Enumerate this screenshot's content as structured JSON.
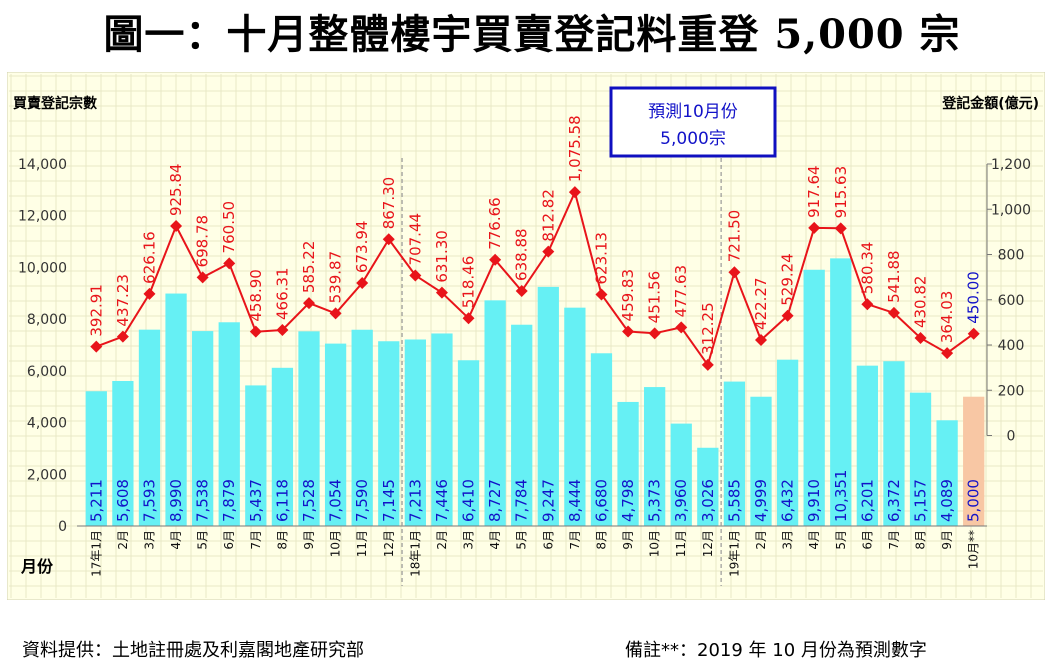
{
  "page_title": "圖一：十月整體樓宇買賣登記料重登 5,000 宗",
  "footer": {
    "source": "資料提供：土地註冊處及利嘉閣地產研究部",
    "note": "備註**：2019 年 10 月份為預測數字"
  },
  "callout": {
    "line1": "預測10月份",
    "line2": "5,000宗"
  },
  "chart_data": {
    "type": "bar+line",
    "title": "圖一：十月整體樓宇買賣登記料重登 5,000 宗",
    "left_axis_label": "買賣登記宗數",
    "right_axis_label": "登記金額(億元)",
    "x_axis_label": "月份",
    "left_ylim": [
      0,
      14000
    ],
    "left_ticks": [
      "0",
      "2,000",
      "4,000",
      "6,000",
      "8,000",
      "10,000",
      "12,000",
      "14,000"
    ],
    "left_tick_values": [
      0,
      2000,
      4000,
      6000,
      8000,
      10000,
      12000,
      14000
    ],
    "right_ylim": [
      -400,
      1200
    ],
    "right_ticks": [
      "0",
      "200",
      "400",
      "600",
      "800",
      "1,000",
      "1,200"
    ],
    "right_tick_values": [
      0,
      200,
      400,
      600,
      800,
      1000,
      1200
    ],
    "categories": [
      "17年1月",
      "2月",
      "3月",
      "4月",
      "5月",
      "6月",
      "7月",
      "8月",
      "9月",
      "10月",
      "11月",
      "12月",
      "18年1月",
      "2月",
      "3月",
      "4月",
      "5月",
      "6月",
      "7月",
      "8月",
      "9月",
      "10月",
      "11月",
      "12月",
      "19年1月",
      "2月",
      "3月",
      "4月",
      "5月",
      "6月",
      "7月",
      "8月",
      "9月",
      "10月**"
    ],
    "series": [
      {
        "name": "買賣登記宗數",
        "kind": "bar",
        "color": "#66f0f4",
        "forecast_color": "#f8c7a4",
        "values": [
          5211,
          5608,
          7593,
          8990,
          7538,
          7879,
          5437,
          6118,
          7528,
          7054,
          7590,
          7145,
          7213,
          7446,
          6410,
          8727,
          7784,
          9247,
          8444,
          6680,
          4798,
          5373,
          3960,
          3026,
          5585,
          4999,
          6432,
          9910,
          10351,
          6201,
          6372,
          5157,
          4089,
          5000
        ],
        "labels": [
          "5,211",
          "5,608",
          "7,593",
          "8,990",
          "7,538",
          "7,879",
          "5,437",
          "6,118",
          "7,528",
          "7,054",
          "7,590",
          "7,145",
          "7,213",
          "7,446",
          "6,410",
          "8,727",
          "7,784",
          "9,247",
          "8,444",
          "6,680",
          "4,798",
          "5,373",
          "3,960",
          "3,026",
          "5,585",
          "4,999",
          "6,432",
          "9,910",
          "10,351",
          "6,201",
          "6,372",
          "5,157",
          "4,089",
          "5,000"
        ],
        "label_color": "#1212c8"
      },
      {
        "name": "登記金額(億元)",
        "kind": "line",
        "color": "#e8141a",
        "values": [
          392.91,
          437.23,
          626.16,
          925.84,
          698.78,
          760.5,
          458.9,
          466.31,
          585.22,
          539.87,
          673.94,
          867.3,
          707.44,
          631.3,
          518.46,
          776.66,
          638.88,
          812.82,
          1075.58,
          623.13,
          459.83,
          451.56,
          477.63,
          312.25,
          721.5,
          422.27,
          529.24,
          917.64,
          915.63,
          580.34,
          541.88,
          430.82,
          364.03,
          450.0
        ],
        "labels": [
          "392.91",
          "437.23",
          "626.16",
          "925.84",
          "698.78",
          "760.50",
          "458.90",
          "466.31",
          "585.22",
          "539.87",
          "673.94",
          "867.30",
          "707.44",
          "631.30",
          "518.46",
          "776.66",
          "638.88",
          "812.82",
          "1,075.58",
          "623.13",
          "459.83",
          "451.56",
          "477.63",
          "312.25",
          "721.50",
          "422.27",
          "529.24",
          "917.64",
          "915.63",
          "580.34",
          "541.88",
          "430.82",
          "364.03",
          "450.00"
        ],
        "forecast_label_color": "#1212c8"
      }
    ],
    "year_dividers_after": [
      "12月",
      "12月"
    ],
    "background": "#ffffe6",
    "grid": "#e9e9c6"
  }
}
